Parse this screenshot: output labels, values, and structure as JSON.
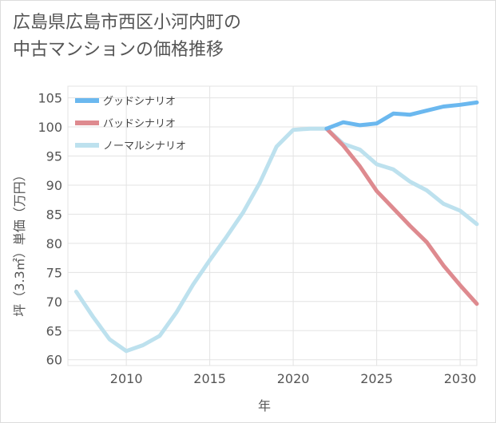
{
  "title_line1": "広島県広島市西区小河内町の",
  "title_line2": "中古マンションの価格推移",
  "chart_data": {
    "type": "line",
    "title": "広島県広島市西区小河内町の中古マンションの価格推移",
    "xlabel": "年",
    "ylabel": "坪（3.3㎡）単価（万円）",
    "xlim": [
      2006.5,
      2031
    ],
    "ylim": [
      59,
      107
    ],
    "xticks": [
      2010,
      2015,
      2020,
      2025,
      2030
    ],
    "yticks": [
      60,
      65,
      70,
      75,
      80,
      85,
      90,
      95,
      100,
      105
    ],
    "grid": true,
    "legend_position": "top-left",
    "series": [
      {
        "name": "グッドシナリオ",
        "color": "#6bb8ef",
        "x": [
          2022,
          2023,
          2024,
          2025,
          2026,
          2027,
          2028,
          2029,
          2030,
          2031
        ],
        "y": [
          99.7,
          100.8,
          100.3,
          100.6,
          102.3,
          102.1,
          102.8,
          103.5,
          103.8,
          104.2
        ]
      },
      {
        "name": "バッドシナリオ",
        "color": "#de8a8f",
        "x": [
          2022,
          2023,
          2024,
          2025,
          2026,
          2027,
          2028,
          2029,
          2030,
          2031
        ],
        "y": [
          99.7,
          96.8,
          93.2,
          89.0,
          86.0,
          83.0,
          80.2,
          76.2,
          72.8,
          69.6
        ]
      },
      {
        "name": "ノーマルシナリオ",
        "color": "#bde1ee",
        "x": [
          2007,
          2008,
          2009,
          2010,
          2011,
          2012,
          2013,
          2014,
          2015,
          2016,
          2017,
          2018,
          2019,
          2020,
          2021,
          2022,
          2023,
          2024,
          2025,
          2026,
          2027,
          2028,
          2029,
          2030,
          2031
        ],
        "y": [
          71.7,
          67.4,
          63.5,
          61.5,
          62.5,
          64.1,
          68.1,
          72.9,
          77.1,
          81.1,
          85.3,
          90.4,
          96.6,
          99.5,
          99.7,
          99.7,
          97.1,
          96.1,
          93.6,
          92.7,
          90.6,
          89.1,
          86.8,
          85.6,
          83.3
        ]
      }
    ]
  }
}
